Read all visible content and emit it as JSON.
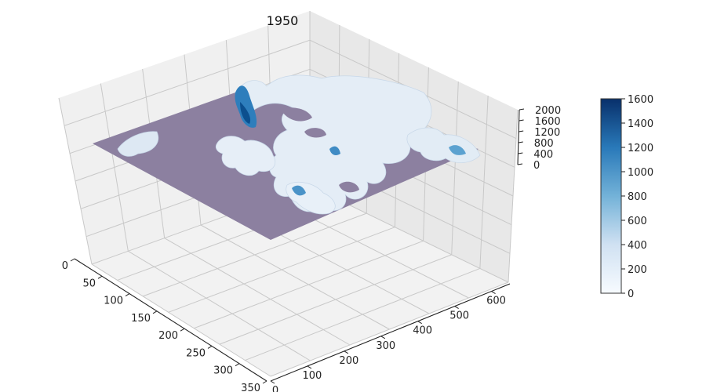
{
  "chart_data": {
    "type": "surface-3d",
    "title": "1950",
    "xlabel": "",
    "ylabel": "",
    "zlabel": "",
    "x_ticks": [
      "0",
      "50",
      "100",
      "150",
      "200",
      "250",
      "300",
      "350"
    ],
    "y_ticks": [
      "0",
      "100",
      "200",
      "300",
      "400",
      "500",
      "600"
    ],
    "z_ticks": [
      "0",
      "400",
      "800",
      "1200",
      "1600",
      "2000"
    ],
    "xlim": [
      0,
      350
    ],
    "ylim": [
      0,
      650
    ],
    "zlim": [
      0,
      2000
    ],
    "grid": true,
    "colormap": "Blues",
    "base_plane_color": "#8c80a0",
    "colorbar": {
      "ticks": [
        "0",
        "200",
        "400",
        "600",
        "800",
        "1000",
        "1200",
        "1400",
        "1600"
      ],
      "range": [
        0,
        1600
      ],
      "placement": "right"
    }
  }
}
